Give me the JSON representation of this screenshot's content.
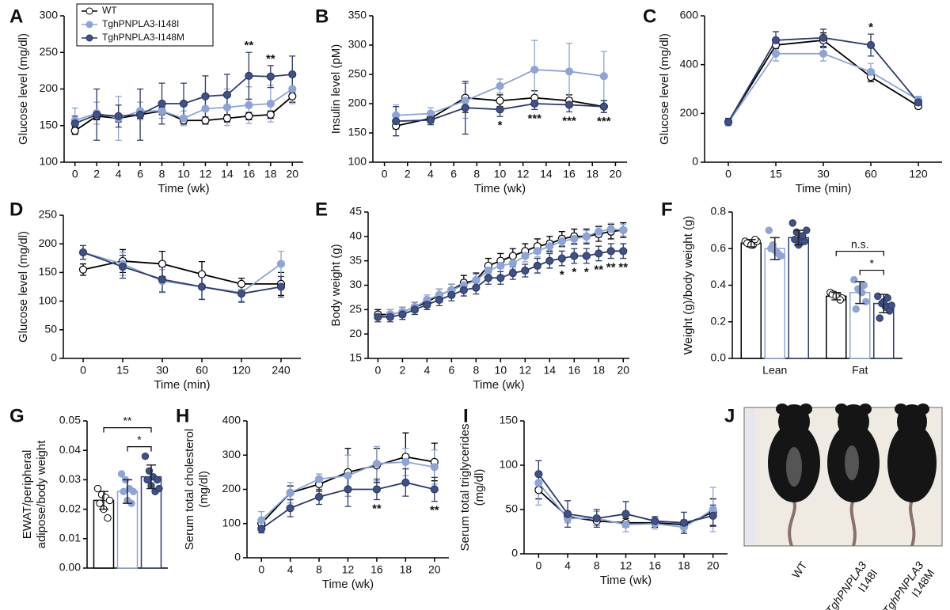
{
  "chart_data": [
    {
      "panel": "A",
      "type": "line",
      "xlabel": "Time (wk)",
      "ylabel": "Glucose level (mg/dl)",
      "x": [
        0,
        2,
        4,
        6,
        8,
        10,
        12,
        14,
        16,
        18,
        20
      ],
      "xlim": [
        -1,
        21
      ],
      "xticks": [
        0,
        2,
        4,
        6,
        8,
        10,
        12,
        14,
        16,
        18,
        20
      ],
      "ylim": [
        100,
        300
      ],
      "yticks": [
        100,
        150,
        200,
        250,
        300
      ],
      "legend": "upper left",
      "series": [
        {
          "name": "WT",
          "color": "#000000",
          "fill": "#ffffff",
          "values": [
            143,
            163,
            160,
            165,
            170,
            157,
            157,
            160,
            163,
            165,
            190
          ],
          "errors": [
            5,
            5,
            5,
            5,
            5,
            5,
            5,
            5,
            5,
            5,
            8
          ]
        },
        {
          "name": "TghPNPLA3-I148I",
          "color": "#8da4d4",
          "fill": "#8da4d4",
          "values": [
            157,
            167,
            160,
            170,
            170,
            160,
            173,
            175,
            178,
            180,
            200
          ],
          "errors": [
            17,
            15,
            30,
            12,
            10,
            10,
            20,
            25,
            25,
            25,
            20
          ]
        },
        {
          "name": "TghPNPLA3-I148M",
          "color": "#2b3a67",
          "fill": "#3f5185",
          "values": [
            153,
            165,
            163,
            165,
            180,
            180,
            190,
            192,
            218,
            217,
            220
          ],
          "errors": [
            10,
            35,
            15,
            35,
            28,
            28,
            28,
            28,
            32,
            15,
            25
          ]
        }
      ],
      "annotations": [
        {
          "text": "**",
          "x": 16
        },
        {
          "text": "**",
          "x": 18
        }
      ]
    },
    {
      "panel": "B",
      "type": "line",
      "xlabel": "Time (wk)",
      "ylabel": "Insulin level (pM)",
      "x": [
        1,
        4,
        7,
        10,
        13,
        16,
        19
      ],
      "xlim": [
        -1,
        21
      ],
      "xticks": [
        0,
        2,
        4,
        6,
        8,
        10,
        12,
        14,
        16,
        18,
        20
      ],
      "ylim": [
        100,
        350
      ],
      "yticks": [
        100,
        150,
        200,
        250,
        300,
        350
      ],
      "annotation_side": "below",
      "series": [
        {
          "color": "#000000",
          "fill": "#ffffff",
          "values": [
            162,
            175,
            210,
            205,
            210,
            205,
            195
          ],
          "errors": [
            5,
            8,
            25,
            10,
            12,
            10,
            10
          ]
        },
        {
          "color": "#8da4d4",
          "fill": "#8da4d4",
          "values": [
            180,
            183,
            205,
            230,
            258,
            255,
            247
          ],
          "errors": [
            18,
            10,
            30,
            12,
            50,
            48,
            42
          ]
        },
        {
          "color": "#2b3a67",
          "fill": "#3f5185",
          "values": [
            170,
            172,
            193,
            190,
            200,
            198,
            195
          ],
          "errors": [
            25,
            8,
            45,
            12,
            10,
            12,
            10
          ]
        }
      ],
      "annotations": [
        {
          "text": "*",
          "x": 10
        },
        {
          "text": "***",
          "x": 13
        },
        {
          "text": "***",
          "x": 16
        },
        {
          "text": "***",
          "x": 19
        }
      ]
    },
    {
      "panel": "C",
      "type": "line",
      "xlabel": "Time (min)",
      "ylabel": "Glucose level (mg/dl)",
      "categories": [
        "0",
        "15",
        "30",
        "60",
        "120"
      ],
      "ylim": [
        0,
        600
      ],
      "yticks": [
        0,
        200,
        400,
        600
      ],
      "series": [
        {
          "color": "#000000",
          "fill": "#ffffff",
          "values": [
            165,
            480,
            500,
            350,
            230
          ],
          "errors": [
            10,
            25,
            30,
            20,
            10
          ]
        },
        {
          "color": "#8da4d4",
          "fill": "#8da4d4",
          "values": [
            162,
            445,
            445,
            370,
            255
          ],
          "errors": [
            10,
            30,
            30,
            35,
            15
          ]
        },
        {
          "color": "#2b3a67",
          "fill": "#3f5185",
          "values": [
            165,
            500,
            510,
            480,
            245
          ],
          "errors": [
            15,
            35,
            35,
            45,
            20
          ]
        }
      ],
      "annotations": [
        {
          "text": "*",
          "x": "60"
        }
      ]
    },
    {
      "panel": "D",
      "type": "line",
      "xlabel": "Time (min)",
      "ylabel": "Glucose level (mg/dl)",
      "categories": [
        "0",
        "15",
        "30",
        "60",
        "120",
        "240"
      ],
      "ylim": [
        0,
        250
      ],
      "yticks": [
        0,
        50,
        100,
        150,
        200,
        250
      ],
      "series": [
        {
          "color": "#000000",
          "fill": "#ffffff",
          "values": [
            155,
            170,
            165,
            147,
            130,
            130
          ],
          "errors": [
            10,
            20,
            22,
            22,
            10,
            20
          ]
        },
        {
          "color": "#8da4d4",
          "fill": "#8da4d4",
          "values": [
            185,
            165,
            135,
            125,
            115,
            165
          ],
          "errors": [
            12,
            20,
            20,
            22,
            15,
            22
          ]
        },
        {
          "color": "#2b3a67",
          "fill": "#3f5185",
          "values": [
            185,
            160,
            138,
            125,
            113,
            125
          ],
          "errors": [
            12,
            20,
            22,
            22,
            15,
            18
          ]
        }
      ]
    },
    {
      "panel": "E",
      "type": "line",
      "xlabel": "Time (wk)",
      "ylabel": "Body weight (g)",
      "x": [
        0,
        1,
        2,
        3,
        4,
        5,
        6,
        7,
        8,
        9,
        10,
        11,
        12,
        13,
        14,
        15,
        16,
        17,
        18,
        19,
        20
      ],
      "xlim": [
        -0.8,
        20.5
      ],
      "xticks": [
        0,
        2,
        4,
        6,
        8,
        10,
        12,
        14,
        16,
        18,
        20
      ],
      "ylim": [
        15,
        45
      ],
      "yticks": [
        15,
        20,
        25,
        30,
        35,
        40,
        45
      ],
      "annotation_side": "below",
      "series": [
        {
          "color": "#000000",
          "fill": "#ffffff",
          "values": [
            24,
            24,
            24.5,
            25.5,
            26.5,
            28,
            29,
            30.5,
            31,
            34,
            35,
            36,
            37,
            38,
            38.5,
            39.5,
            40,
            40,
            40.5,
            41,
            41.3
          ],
          "errors": [
            1,
            1,
            1,
            1,
            1,
            1.2,
            1.2,
            1.5,
            1.5,
            1.5,
            1.5,
            1.5,
            1.5,
            1.5,
            1.5,
            1.5,
            1.5,
            1.5,
            1.5,
            1.5,
            1.5
          ]
        },
        {
          "color": "#8da4d4",
          "fill": "#8da4d4",
          "values": [
            23.5,
            24,
            24.5,
            25.5,
            27,
            28,
            29,
            30,
            31,
            33,
            34,
            34.5,
            36,
            37,
            38,
            39,
            39.5,
            40,
            41,
            41.5,
            41.3
          ],
          "errors": [
            1,
            1,
            1,
            1,
            1,
            1.2,
            1.2,
            1.2,
            1.2,
            1.2,
            1.2,
            1.2,
            1.2,
            1.2,
            1.2,
            1.2,
            1.2,
            1.2,
            1.2,
            1.2,
            1.2
          ]
        },
        {
          "color": "#2b3a67",
          "fill": "#3f5185",
          "values": [
            23.5,
            23.5,
            24,
            25,
            26,
            27,
            28,
            29,
            29.5,
            31.5,
            31.5,
            32.5,
            33,
            34,
            35,
            35.5,
            36,
            36,
            36.5,
            37,
            37
          ],
          "errors": [
            1,
            1,
            1,
            1,
            1,
            1.2,
            1.2,
            1.2,
            1.3,
            1.3,
            1.3,
            1.3,
            1.3,
            1.5,
            1.5,
            1.5,
            1.5,
            1.5,
            1.5,
            1.5,
            1.5
          ]
        }
      ],
      "annotations": [
        {
          "text": "*",
          "x": 15
        },
        {
          "text": "*",
          "x": 16
        },
        {
          "text": "*",
          "x": 17
        },
        {
          "text": "**",
          "x": 18
        },
        {
          "text": "**",
          "x": 19
        },
        {
          "text": "**",
          "x": 20
        }
      ]
    },
    {
      "panel": "F",
      "type": "bar",
      "ylabel": "Weight (g)/body weight (g)",
      "categories": [
        "Lean",
        "Fat"
      ],
      "ylim": [
        0,
        0.8
      ],
      "yticks": [
        {
          "value": 0,
          "label": "0.0"
        },
        0.2,
        0.4,
        0.6,
        0.8
      ],
      "series": [
        {
          "color": "#000000",
          "fill": "#ffffff",
          "values": [
            0.63,
            0.34
          ],
          "errors": [
            0.02,
            0.02
          ],
          "points": [
            [
              0.64,
              0.63,
              0.62,
              0.64,
              0.63,
              0.62,
              0.65
            ],
            [
              0.36,
              0.35,
              0.34,
              0.33,
              0.35,
              0.34,
              0.32
            ]
          ]
        },
        {
          "color": "#8da4d4",
          "fill": "#8da4d4",
          "values": [
            0.6,
            0.36
          ],
          "errors": [
            0.06,
            0.06
          ],
          "points": [
            [
              0.7,
              0.62,
              0.58,
              0.56,
              0.6,
              0.59,
              0.57
            ],
            [
              0.43,
              0.38,
              0.36,
              0.31,
              0.27,
              0.37,
              0.4
            ]
          ]
        },
        {
          "color": "#2b3a67",
          "fill": "#3f5185",
          "values": [
            0.66,
            0.3
          ],
          "errors": [
            0.04,
            0.05
          ],
          "points": [
            [
              0.74,
              0.69,
              0.66,
              0.64,
              0.65,
              0.62,
              0.67,
              0.7
            ],
            [
              0.34,
              0.3,
              0.28,
              0.26,
              0.22,
              0.31,
              0.33,
              0.29
            ]
          ]
        }
      ],
      "comparisons": [
        {
          "text": "n.s.",
          "category": 1,
          "between": [
            0,
            2
          ]
        },
        {
          "text": "*",
          "category": 1,
          "between": [
            1,
            2
          ]
        }
      ]
    },
    {
      "panel": "G",
      "type": "bar",
      "ylabel": [
        "EWAT/peripheral",
        "adipose/body weight"
      ],
      "categories": [
        null
      ],
      "ylim": [
        0,
        0.05
      ],
      "yticks": [
        {
          "value": 0,
          "label": "0.00"
        },
        0.01,
        0.02,
        0.03,
        0.04,
        0.05
      ],
      "series": [
        {
          "color": "#000000",
          "fill": "#ffffff",
          "values": [
            0.023
          ],
          "errors": [
            0.003
          ],
          "points": [
            [
              0.027,
              0.025,
              0.024,
              0.023,
              0.022,
              0.02,
              0.017
            ]
          ]
        },
        {
          "color": "#8da4d4",
          "fill": "#8da4d4",
          "values": [
            0.026
          ],
          "errors": [
            0.004
          ],
          "points": [
            [
              0.032,
              0.03,
              0.027,
              0.026,
              0.026,
              0.023,
              0.022
            ]
          ]
        },
        {
          "color": "#2b3a67",
          "fill": "#3f5185",
          "values": [
            0.031
          ],
          "errors": [
            0.004
          ],
          "points": [
            [
              0.038,
              0.033,
              0.031,
              0.03,
              0.03,
              0.028,
              0.026,
              0.027
            ]
          ]
        }
      ],
      "comparisons": [
        {
          "text": "**",
          "category": 0,
          "between": [
            0,
            2
          ]
        },
        {
          "text": "*",
          "category": 0,
          "between": [
            1,
            2
          ]
        }
      ]
    },
    {
      "panel": "H",
      "type": "line",
      "xlabel": "Time (wk)",
      "ylabel": [
        "Serum total cholesterol",
        "(mg/dl)"
      ],
      "categories": [
        "0",
        "4",
        "8",
        "12",
        "16",
        "18",
        "20"
      ],
      "ylim": [
        0,
        400
      ],
      "yticks": [
        0,
        100,
        200,
        300,
        400
      ],
      "annotation_side": "below",
      "series": [
        {
          "color": "#000000",
          "fill": "#ffffff",
          "values": [
            100,
            190,
            215,
            250,
            270,
            295,
            280
          ],
          "errors": [
            10,
            20,
            20,
            70,
            50,
            70,
            55
          ]
        },
        {
          "color": "#8da4d4",
          "fill": "#8da4d4",
          "values": [
            110,
            190,
            230,
            240,
            275,
            280,
            265
          ],
          "errors": [
            25,
            30,
            15,
            60,
            50,
            40,
            50
          ]
        },
        {
          "color": "#2b3a67",
          "fill": "#3f5185",
          "values": [
            85,
            145,
            178,
            200,
            200,
            220,
            200
          ],
          "errors": [
            12,
            25,
            22,
            50,
            30,
            40,
            35
          ]
        }
      ],
      "annotations": [
        {
          "text": "**",
          "x": "16"
        },
        {
          "text": "**",
          "x": "20"
        }
      ]
    },
    {
      "panel": "I",
      "type": "line",
      "xlabel": "Time (wk)",
      "ylabel": [
        "Serum total triglycerides",
        "(mg/dl)"
      ],
      "categories": [
        "0",
        "4",
        "8",
        "12",
        "16",
        "18",
        "20"
      ],
      "ylim": [
        0,
        150
      ],
      "yticks": [
        0,
        50,
        100,
        150
      ],
      "series": [
        {
          "color": "#000000",
          "fill": "#ffffff",
          "values": [
            72,
            42,
            37,
            35,
            35,
            33,
            47
          ],
          "errors": [
            10,
            5,
            5,
            5,
            5,
            5,
            15
          ]
        },
        {
          "color": "#8da4d4",
          "fill": "#8da4d4",
          "values": [
            80,
            40,
            40,
            33,
            34,
            30,
            50
          ],
          "errors": [
            25,
            5,
            8,
            8,
            6,
            5,
            25
          ]
        },
        {
          "color": "#2b3a67",
          "fill": "#3f5185",
          "values": [
            90,
            45,
            40,
            45,
            37,
            35,
            43
          ],
          "errors": [
            15,
            15,
            10,
            14,
            5,
            12,
            12
          ]
        }
      ]
    }
  ],
  "photo": {
    "panel": "J",
    "labels": [
      [
        "WT"
      ],
      [
        "TghPNPLA3",
        "I148I"
      ],
      [
        "TghPNPLA3",
        "I148M"
      ]
    ]
  }
}
